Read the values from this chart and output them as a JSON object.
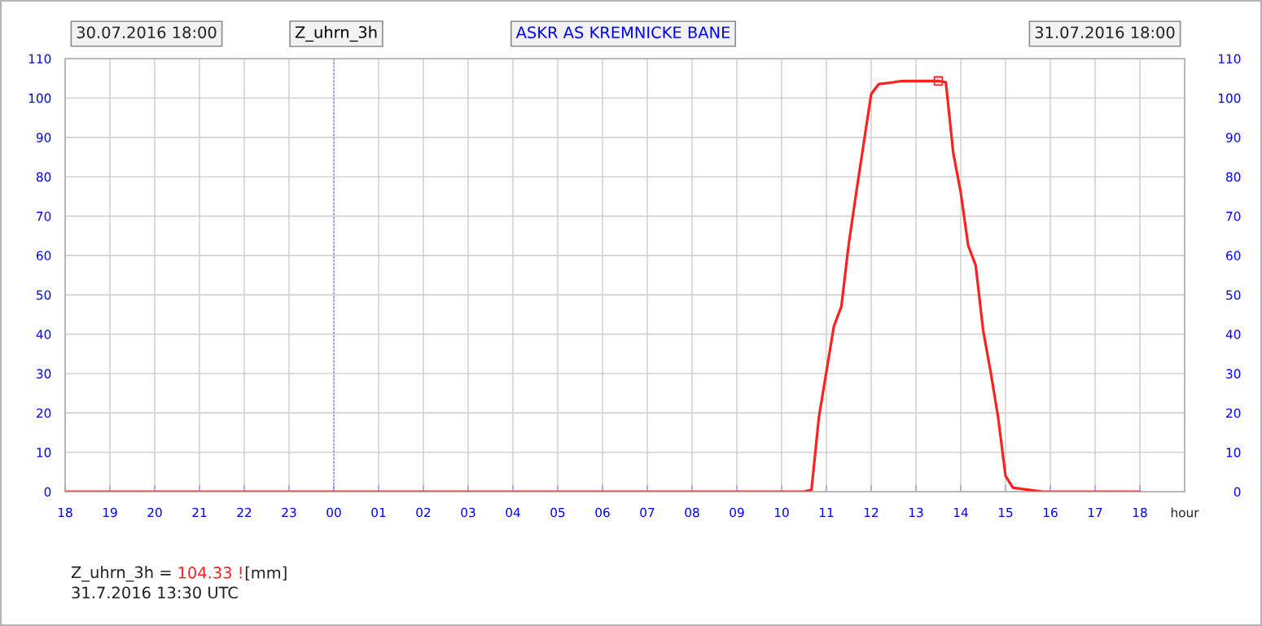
{
  "chart_data": {
    "type": "line",
    "title": "Z_uhrn_3h",
    "subtitle": "ASKR AS KREMNICKE BANE",
    "xlabel": "hour",
    "annotations": [
      "30.07.2016 18:00",
      "31.07.2016 18:00",
      "Z_uhrn_3h =",
      "104.33 !",
      "[mm]",
      "31.7.2016 13:30 UTC"
    ],
    "series": [
      {
        "color": "#ff2020",
        "x": [
          "2016-07-30T18:00",
          "2016-07-31T10:30",
          "2016-07-31T10:40",
          "2016-07-31T10:50",
          "2016-07-31T11:10",
          "2016-07-31T11:20",
          "2016-07-31T11:30",
          "2016-07-31T11:40",
          "2016-07-31T12:00",
          "2016-07-31T12:10",
          "2016-07-31T12:30",
          "2016-07-31T12:40",
          "2016-07-31T13:30",
          "2016-07-31T13:40",
          "2016-07-31T13:50",
          "2016-07-31T14:00",
          "2016-07-31T14:10",
          "2016-07-31T14:20",
          "2016-07-31T14:30",
          "2016-07-31T14:40",
          "2016-07-31T14:50",
          "2016-07-31T15:00",
          "2016-07-31T15:10",
          "2016-07-31T15:30",
          "2016-07-31T15:50",
          "2016-07-31T18:00"
        ],
        "values": [
          0,
          0,
          0.5,
          19,
          42,
          47,
          63,
          76,
          101,
          103.5,
          104,
          104.3,
          104.33,
          104,
          86,
          76,
          62.5,
          57.5,
          41,
          30.5,
          19,
          4,
          1,
          0.5,
          0,
          0
        ]
      },
      {
        "type": "scatter",
        "marker": "square",
        "color": "#ff2020",
        "x": [
          "2016-07-31T13:30"
        ],
        "values": [
          104.33
        ]
      }
    ],
    "xlim": [
      "2016-07-30T18:00",
      "2016-07-31T19:00"
    ],
    "xticks": [
      {
        "value": "2016-07-30T18:00",
        "label": "18"
      },
      {
        "value": "2016-07-30T19:00",
        "label": "19"
      },
      {
        "value": "2016-07-30T20:00",
        "label": "20"
      },
      {
        "value": "2016-07-30T21:00",
        "label": "21"
      },
      {
        "value": "2016-07-30T22:00",
        "label": "22"
      },
      {
        "value": "2016-07-30T23:00",
        "label": "23"
      },
      {
        "value": "2016-07-31T00:00",
        "label": "00"
      },
      {
        "value": "2016-07-31T01:00",
        "label": "01"
      },
      {
        "value": "2016-07-31T02:00",
        "label": "02"
      },
      {
        "value": "2016-07-31T03:00",
        "label": "03"
      },
      {
        "value": "2016-07-31T04:00",
        "label": "04"
      },
      {
        "value": "2016-07-31T05:00",
        "label": "05"
      },
      {
        "value": "2016-07-31T06:00",
        "label": "06"
      },
      {
        "value": "2016-07-31T07:00",
        "label": "07"
      },
      {
        "value": "2016-07-31T08:00",
        "label": "08"
      },
      {
        "value": "2016-07-31T09:00",
        "label": "09"
      },
      {
        "value": "2016-07-31T10:00",
        "label": "10"
      },
      {
        "value": "2016-07-31T11:00",
        "label": "11"
      },
      {
        "value": "2016-07-31T12:00",
        "label": "12"
      },
      {
        "value": "2016-07-31T13:00",
        "label": "13"
      },
      {
        "value": "2016-07-31T14:00",
        "label": "14"
      },
      {
        "value": "2016-07-31T15:00",
        "label": "15"
      },
      {
        "value": "2016-07-31T16:00",
        "label": "16"
      },
      {
        "value": "2016-07-31T17:00",
        "label": "17"
      },
      {
        "value": "2016-07-31T18:00",
        "label": "18"
      }
    ],
    "ylim": [
      0,
      110
    ],
    "yticks": [
      0,
      10,
      20,
      30,
      40,
      50,
      60,
      70,
      80,
      90,
      100,
      110
    ],
    "y2lim": [
      0,
      110
    ],
    "y2ticks": [
      0,
      10,
      20,
      30,
      40,
      50,
      60,
      70,
      80,
      90,
      100,
      110
    ],
    "ref_lines": [
      {
        "axis": "x",
        "value": "2016-07-31T00:00",
        "color": "#8080ff",
        "line_style": "dotted"
      }
    ],
    "grid": true
  }
}
